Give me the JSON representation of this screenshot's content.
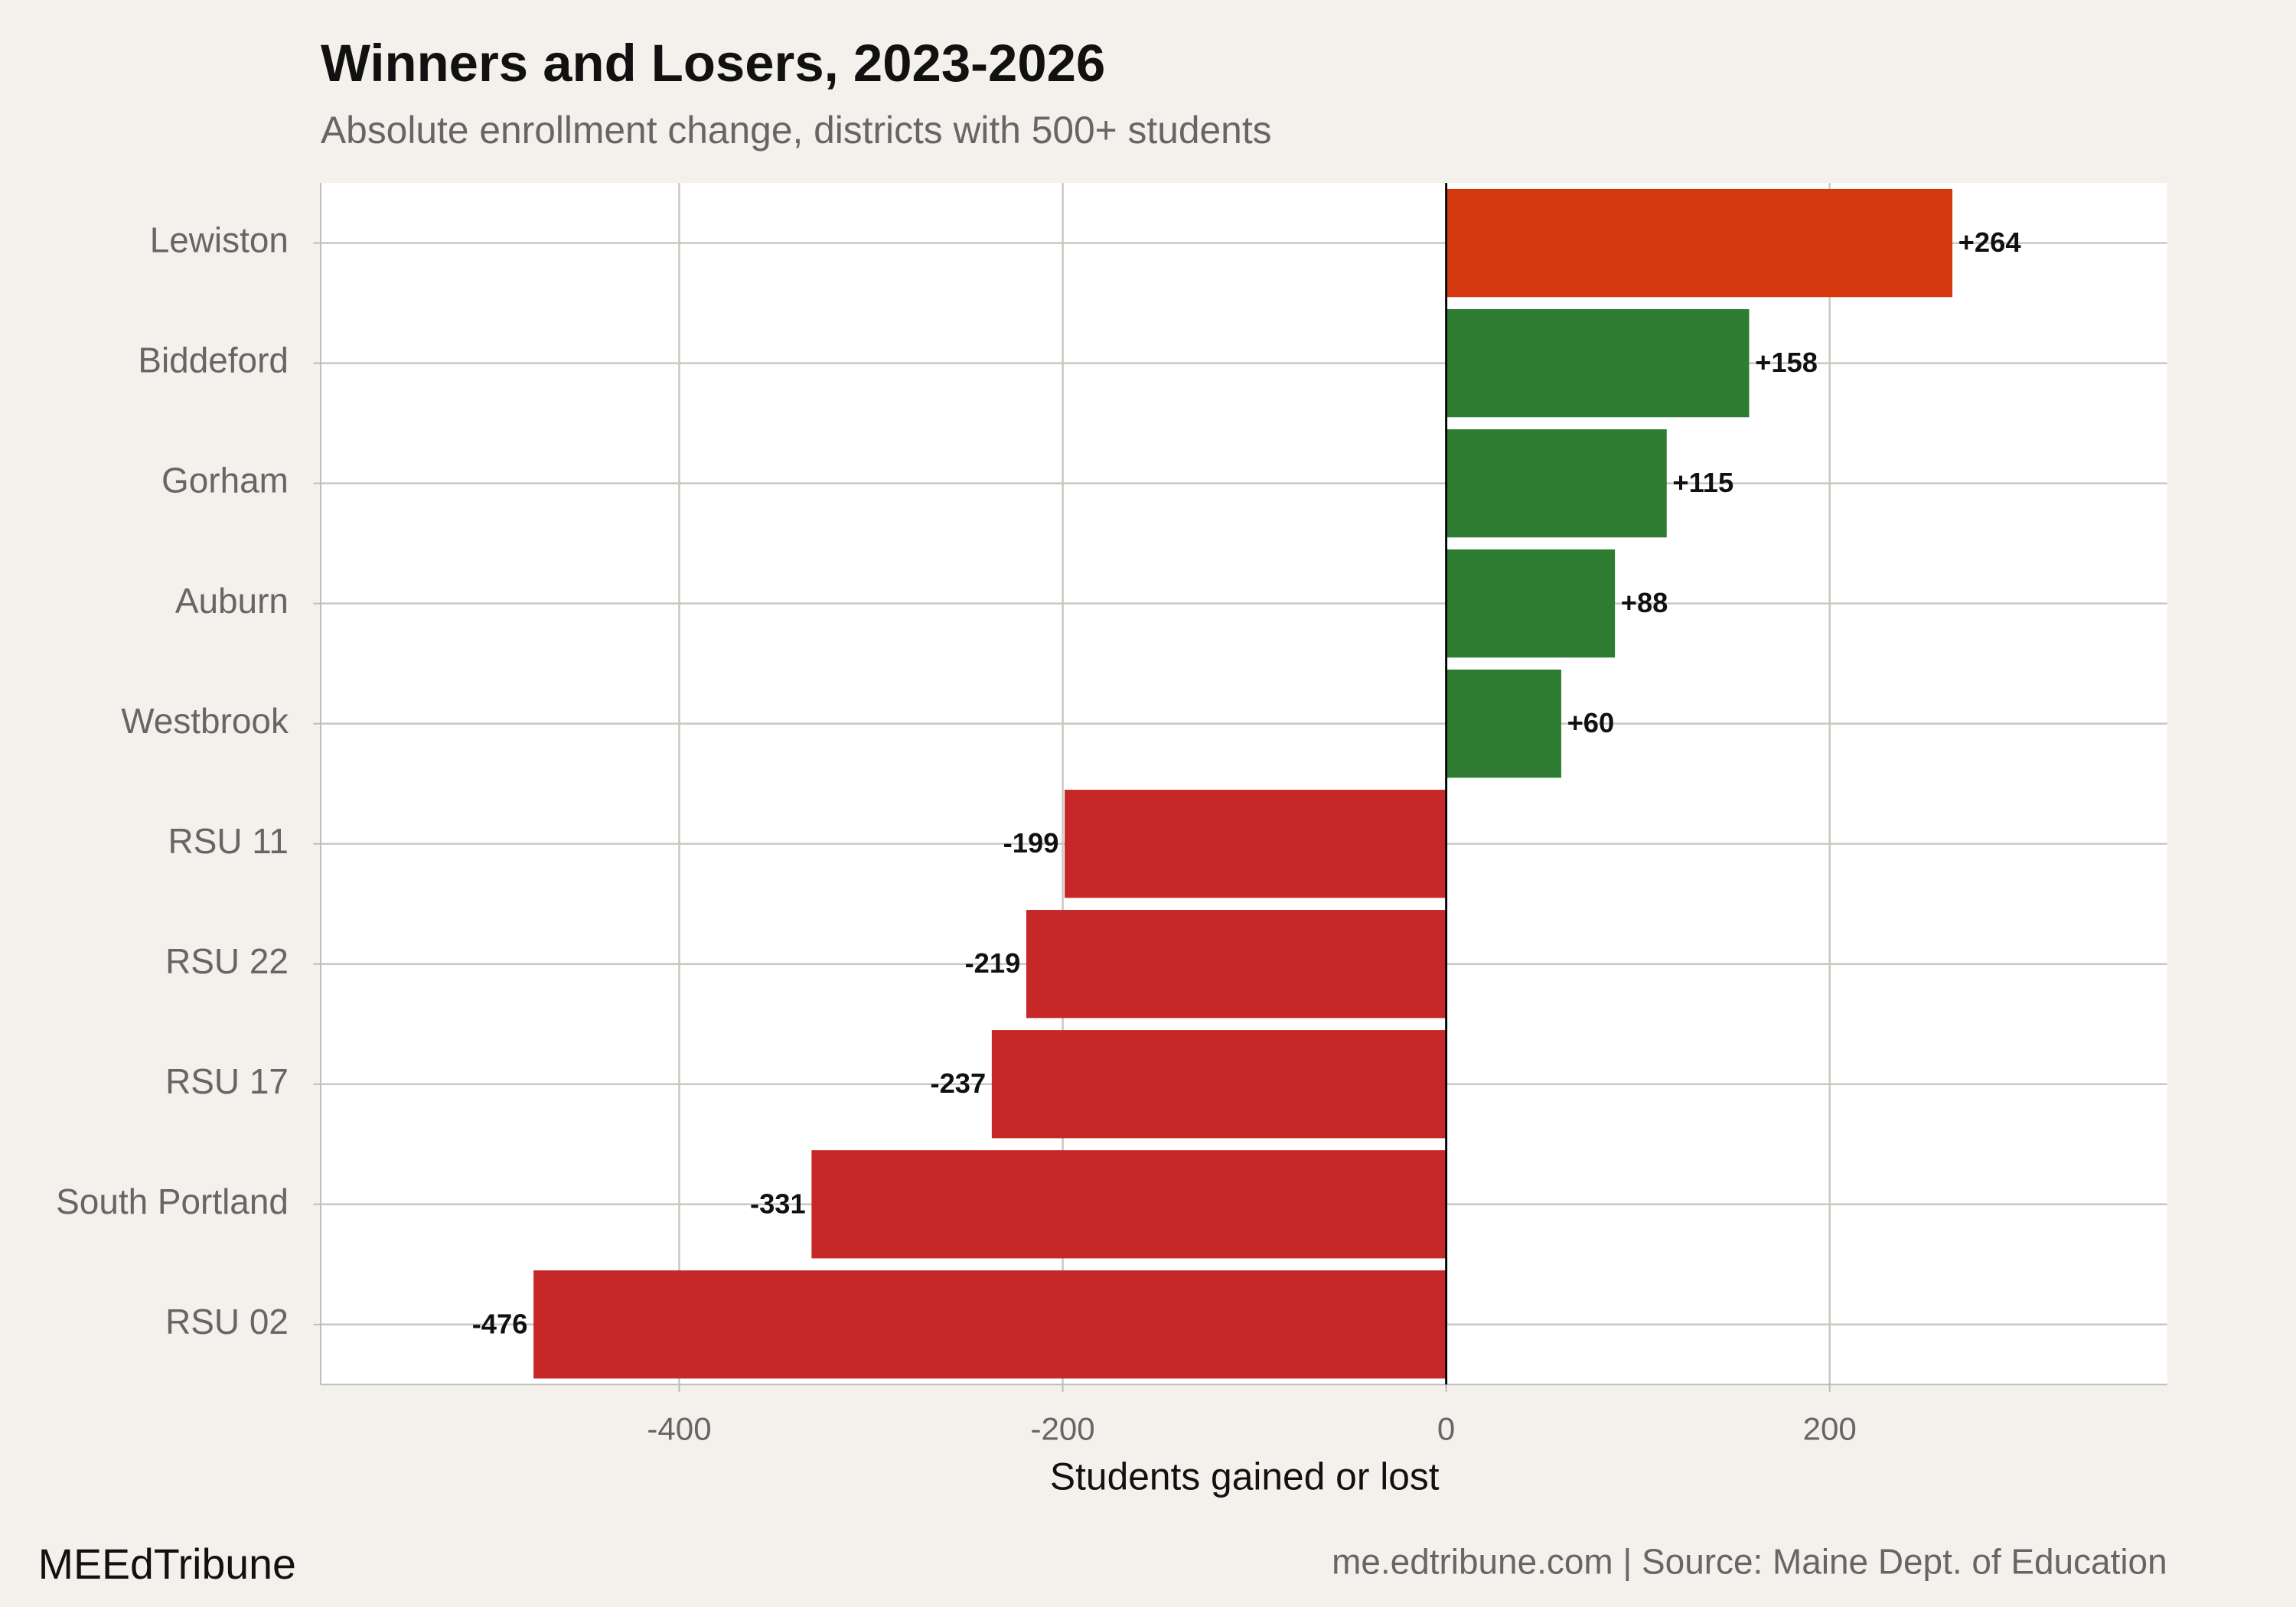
{
  "chart_data": {
    "type": "hbar",
    "title": "Winners and Losers, 2023-2026",
    "subtitle": "Absolute enrollment change, districts with 500+ students",
    "x_label": "Students gained or lost",
    "brand": "MEEdTribune",
    "caption": "me.edtribune.com | Source: Maine Dept. of Education",
    "categories": [
      "Lewiston",
      "Biddeford",
      "Gorham",
      "Auburn",
      "Westbrook",
      "RSU 11",
      "RSU 22",
      "RSU 17",
      "South Portland",
      "RSU 02"
    ],
    "values": [
      264,
      158,
      115,
      88,
      60,
      -199,
      -219,
      -237,
      -331,
      -476
    ],
    "value_labels": [
      "+264",
      "+158",
      "+115",
      "+88",
      "+60",
      "-199",
      "-219",
      "-237",
      "-331",
      "-476"
    ],
    "colors": [
      "#d5390f",
      "#2e7d32",
      "#2e7d32",
      "#2e7d32",
      "#2e7d32",
      "#c62828",
      "#c62828",
      "#c62828",
      "#c62828",
      "#c62828"
    ],
    "xlim": [
      -587,
      376
    ],
    "xticks": [
      -400,
      -200,
      0,
      200
    ],
    "grid": true
  }
}
